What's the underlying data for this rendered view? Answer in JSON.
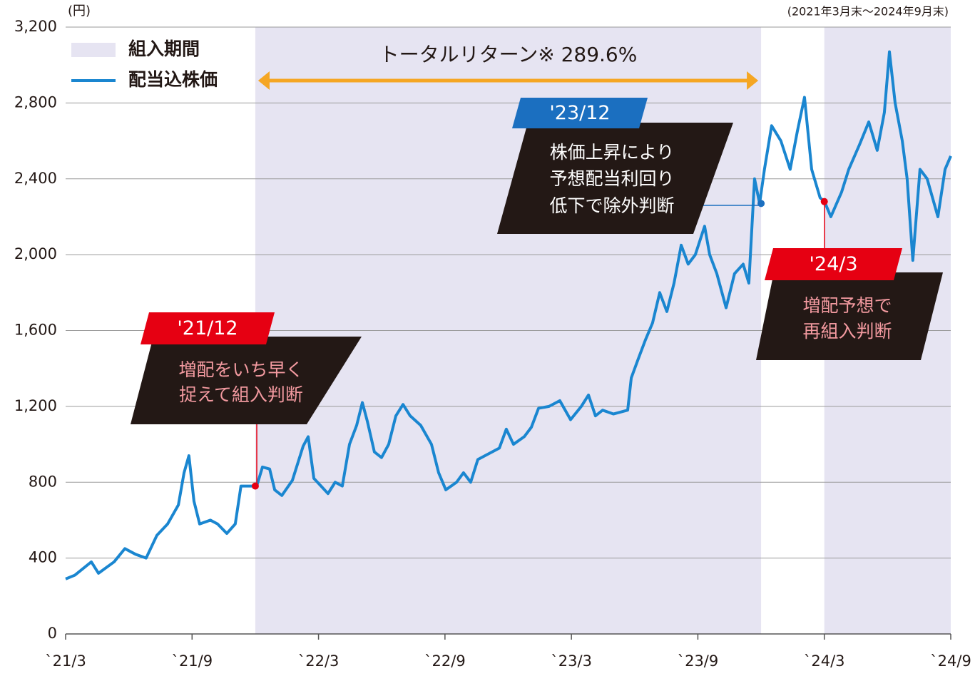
{
  "chart_data": {
    "type": "line",
    "unit_label": "(円)",
    "note": "(2021年3月末～2024年9月末)",
    "shaded_name": "組入期間",
    "shaded_color": "#e6e4f2",
    "shaded_periods": [
      [
        9,
        33
      ],
      [
        36,
        42
      ]
    ],
    "return_label": "トータルリターン※ 289.6%",
    "return_span": [
      9,
      33
    ],
    "return_color": "#f5a623",
    "grid": true,
    "xlim": [
      0,
      42
    ],
    "xticks": [
      {
        "value": 0,
        "label": "`21/3"
      },
      {
        "value": 6,
        "label": "`21/9"
      },
      {
        "value": 12,
        "label": "`22/3"
      },
      {
        "value": 18,
        "label": "`22/9"
      },
      {
        "value": 24,
        "label": "`23/3"
      },
      {
        "value": 30,
        "label": "`23/9"
      },
      {
        "value": 36,
        "label": "`24/3"
      },
      {
        "value": 42,
        "label": "`24/9"
      }
    ],
    "ylim": [
      0,
      3200
    ],
    "yticks": [
      0,
      400,
      800,
      {
        "value": 1200,
        "label": "1,200"
      },
      {
        "value": 1600,
        "label": "1,600"
      },
      {
        "value": 2000,
        "label": "2,000"
      },
      {
        "value": 2400,
        "label": "2,400"
      },
      {
        "value": 2800,
        "label": "2,800"
      },
      {
        "value": 3200,
        "label": "3,200"
      }
    ],
    "series": [
      {
        "name": "配当込株価",
        "color": "#1a86d0",
        "x": [
          0,
          0.44,
          1.22,
          1.56,
          2.3,
          2.81,
          3.32,
          3.82,
          4.33,
          4.84,
          5.35,
          5.62,
          5.85,
          6.09,
          6.36,
          6.87,
          7.21,
          7.65,
          8.05,
          8.32,
          8.73,
          9.07,
          9.34,
          9.68,
          9.92,
          10.26,
          10.76,
          11.27,
          11.51,
          11.78,
          12.12,
          12.45,
          12.79,
          13.13,
          13.47,
          13.81,
          14.08,
          14.32,
          14.65,
          14.99,
          15.33,
          15.67,
          16.01,
          16.35,
          16.85,
          17.36,
          17.7,
          18.04,
          18.55,
          18.88,
          19.22,
          19.56,
          20.07,
          20.58,
          20.91,
          21.25,
          21.76,
          22.1,
          22.44,
          22.94,
          23.45,
          23.96,
          24.47,
          24.81,
          25.14,
          25.48,
          25.99,
          26.67,
          26.84,
          27.17,
          27.51,
          27.85,
          28.19,
          28.53,
          28.87,
          29.21,
          29.54,
          29.88,
          30.32,
          30.56,
          30.9,
          31.34,
          31.74,
          32.15,
          32.42,
          32.69,
          32.93,
          33.16,
          33.5,
          33.94,
          34.38,
          34.72,
          35.06,
          35.4,
          35.8,
          36.01,
          36.31,
          36.82,
          37.16,
          37.67,
          38.11,
          38.51,
          38.85,
          39.09,
          39.36,
          39.7,
          39.93,
          40.2,
          40.54,
          40.88,
          41.39,
          41.73,
          42
        ],
        "values": [
          290,
          310,
          380,
          320,
          380,
          450,
          420,
          400,
          520,
          580,
          680,
          850,
          940,
          700,
          580,
          600,
          580,
          530,
          580,
          780,
          780,
          780,
          880,
          870,
          760,
          730,
          810,
          990,
          1040,
          820,
          780,
          740,
          800,
          780,
          1000,
          1100,
          1220,
          1120,
          960,
          930,
          1000,
          1150,
          1210,
          1150,
          1100,
          1000,
          850,
          760,
          800,
          850,
          800,
          920,
          950,
          980,
          1080,
          1000,
          1040,
          1090,
          1190,
          1200,
          1230,
          1130,
          1200,
          1260,
          1150,
          1180,
          1160,
          1180,
          1350,
          1450,
          1550,
          1640,
          1800,
          1700,
          1850,
          2050,
          1950,
          2000,
          2150,
          2000,
          1900,
          1720,
          1900,
          1950,
          1850,
          2400,
          2270,
          2450,
          2680,
          2600,
          2450,
          2650,
          2830,
          2450,
          2300,
          2280,
          2200,
          2330,
          2450,
          2580,
          2700,
          2550,
          2750,
          3070,
          2800,
          2600,
          2400,
          1970,
          2450,
          2400,
          2200,
          2450,
          2520
        ]
      }
    ],
    "annotations": [
      {
        "date_label": "'21/12",
        "text": [
          "増配をいち早く",
          "捉えて組入判断"
        ],
        "x": 9,
        "y": 780,
        "color": "#e60012"
      },
      {
        "date_label": "'23/12",
        "text": [
          "株価上昇により",
          "予想配当利回り",
          "低下で除外判断"
        ],
        "x": 33,
        "y": 2270,
        "color": "#1b6fc0"
      },
      {
        "date_label": "'24/3",
        "text": [
          "増配予想で",
          "再組入判断"
        ],
        "x": 36,
        "y": 2280,
        "color": "#e60012"
      }
    ]
  }
}
